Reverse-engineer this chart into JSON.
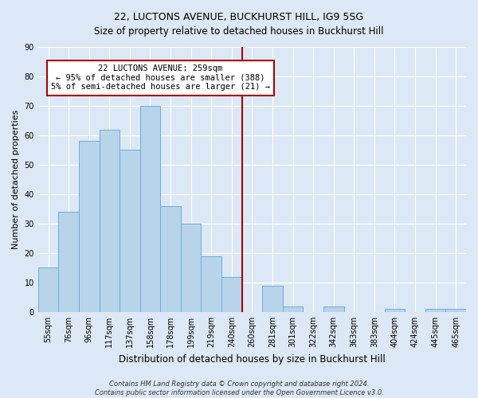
{
  "title": "22, LUCTONS AVENUE, BUCKHURST HILL, IG9 5SG",
  "subtitle": "Size of property relative to detached houses in Buckhurst Hill",
  "xlabel": "Distribution of detached houses by size in Buckhurst Hill",
  "ylabel": "Number of detached properties",
  "bin_labels": [
    "55sqm",
    "76sqm",
    "96sqm",
    "117sqm",
    "137sqm",
    "158sqm",
    "178sqm",
    "199sqm",
    "219sqm",
    "240sqm",
    "260sqm",
    "281sqm",
    "301sqm",
    "322sqm",
    "342sqm",
    "363sqm",
    "383sqm",
    "404sqm",
    "424sqm",
    "445sqm",
    "465sqm"
  ],
  "bar_heights": [
    15,
    34,
    58,
    62,
    55,
    70,
    36,
    30,
    19,
    12,
    0,
    9,
    2,
    0,
    2,
    0,
    0,
    1,
    0,
    1,
    1
  ],
  "bar_color": "#b8d4ea",
  "bar_edge_color": "#6baed6",
  "vline_x_index": 10,
  "vline_color": "#aa0000",
  "ylim": [
    0,
    90
  ],
  "yticks": [
    0,
    10,
    20,
    30,
    40,
    50,
    60,
    70,
    80,
    90
  ],
  "annotation_title": "22 LUCTONS AVENUE: 259sqm",
  "annotation_line1": "← 95% of detached houses are smaller (388)",
  "annotation_line2": "5% of semi-detached houses are larger (21) →",
  "annotation_box_facecolor": "#ffffff",
  "annotation_box_edgecolor": "#aa0000",
  "footer1": "Contains HM Land Registry data © Crown copyright and database right 2024.",
  "footer2": "Contains public sector information licensed under the Open Government Licence v3.0.",
  "background_color": "#dce8f5",
  "grid_color": "#ffffff",
  "title_fontsize": 9,
  "subtitle_fontsize": 8.5,
  "xlabel_fontsize": 8.5,
  "ylabel_fontsize": 8,
  "tick_fontsize": 7,
  "annotation_fontsize": 7.5,
  "footer_fontsize": 6
}
